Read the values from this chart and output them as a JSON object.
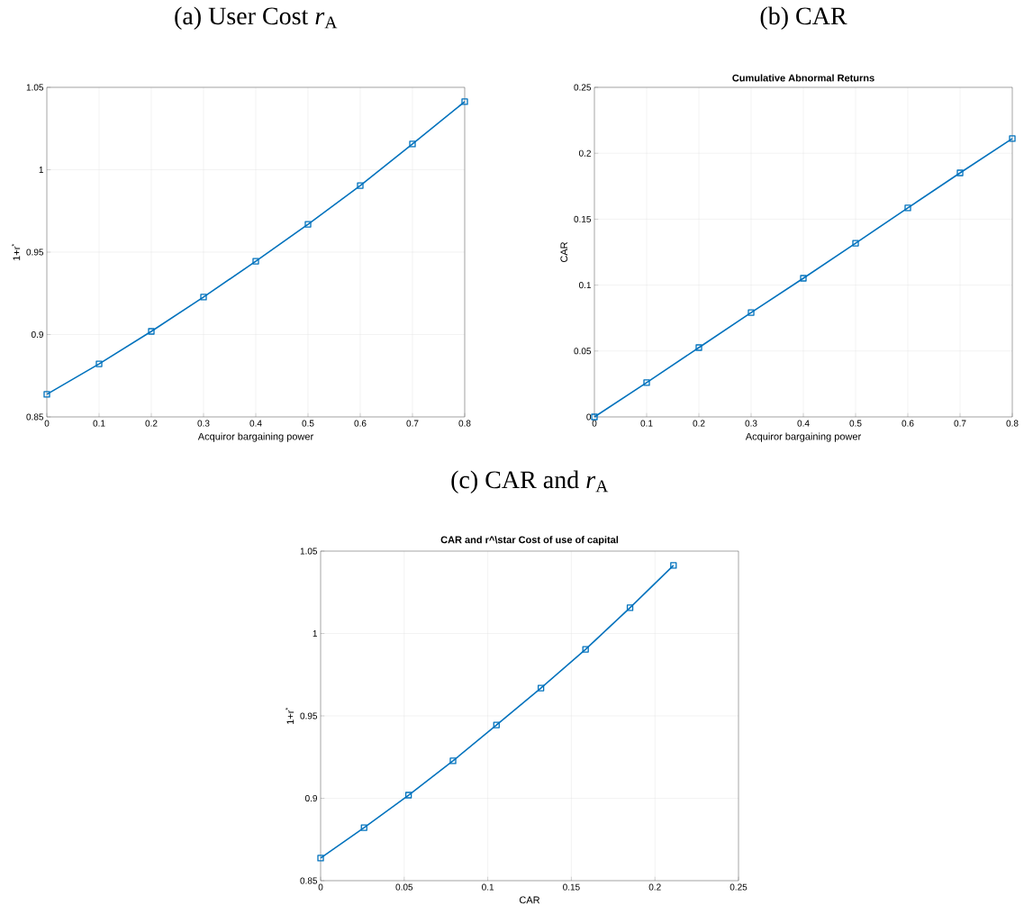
{
  "chart_data": [
    {
      "type": "line",
      "title": "(a) User Cost *r*$_{A}$",
      "xlabel": "Acquiror bargaining power",
      "ylabel": "1+r$^{*}$",
      "x": [
        0,
        0.1,
        0.2,
        0.3,
        0.4,
        0.5,
        0.6,
        0.7,
        0.8
      ],
      "series": [
        {
          "color": "#0072bd",
          "values": [
            0.8637,
            0.8822,
            0.9019,
            0.9227,
            0.9445,
            0.9669,
            0.9904,
            1.0156,
            1.0413
          ]
        }
      ],
      "xlim": [
        0,
        0.8
      ],
      "xticks": [
        0,
        0.1,
        0.2,
        0.3,
        0.4,
        0.5,
        0.6,
        0.7,
        0.8
      ],
      "ylim": [
        0.85,
        1.05
      ],
      "yticks": [
        0.85,
        0.9,
        0.95,
        1,
        1.05
      ],
      "grid": true,
      "marker": "square",
      "line_style": "solid"
    },
    {
      "type": "line",
      "title": "(b) CAR",
      "subtitle": "Cumulative Abnormal Returns",
      "xlabel": "Acquiror bargaining power",
      "ylabel": "CAR",
      "x": [
        0,
        0.1,
        0.2,
        0.3,
        0.4,
        0.5,
        0.6,
        0.7,
        0.8
      ],
      "series": [
        {
          "color": "#0072bd",
          "values": [
            0,
            0.026,
            0.0526,
            0.0792,
            0.1052,
            0.1318,
            0.1585,
            0.1851,
            0.2111
          ]
        }
      ],
      "xlim": [
        0,
        0.8
      ],
      "xticks": [
        0,
        0.1,
        0.2,
        0.3,
        0.4,
        0.5,
        0.6,
        0.7,
        0.8
      ],
      "ylim": [
        0,
        0.25
      ],
      "yticks": [
        0,
        0.05,
        0.1,
        0.15,
        0.2,
        0.25
      ],
      "grid": true,
      "marker": "square",
      "line_style": "solid"
    },
    {
      "type": "line",
      "title": "(c) CAR and *r*$_{A}$",
      "subtitle": "CAR and r^\\star Cost of use of capital",
      "xlabel": "CAR",
      "ylabel": "1+r$^{*}$",
      "x": [
        0,
        0.026,
        0.0526,
        0.0792,
        0.1052,
        0.1318,
        0.1585,
        0.1851,
        0.2111
      ],
      "series": [
        {
          "color": "#0072bd",
          "values": [
            0.8637,
            0.8822,
            0.9019,
            0.9227,
            0.9445,
            0.9669,
            0.9904,
            1.0156,
            1.0413
          ]
        }
      ],
      "xlim": [
        0,
        0.25
      ],
      "xticks": [
        0,
        0.05,
        0.1,
        0.15,
        0.2,
        0.25
      ],
      "ylim": [
        0.85,
        1.05
      ],
      "yticks": [
        0.85,
        0.9,
        0.95,
        1,
        1.05
      ],
      "grid": true,
      "marker": "square",
      "line_style": "solid"
    }
  ]
}
